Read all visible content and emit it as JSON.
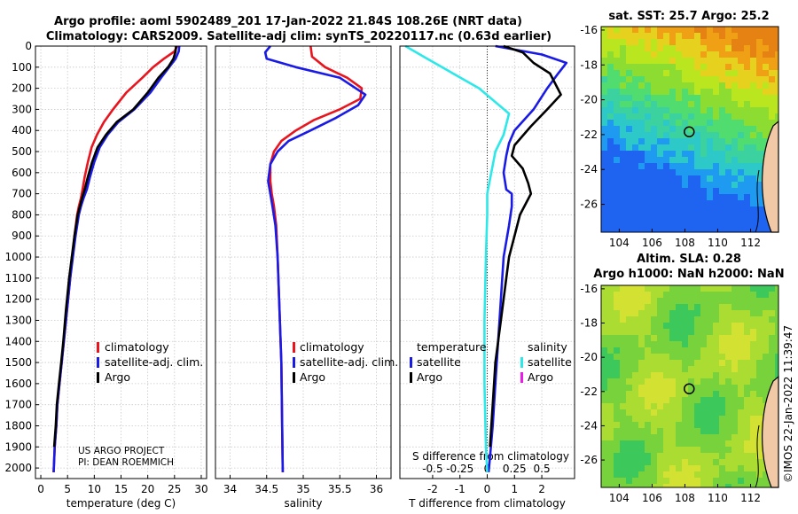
{
  "header": {
    "line1": "Argo profile: aoml 5902489_201 17-Jan-2022 21.84S 108.26E (NRT data)",
    "line2": "Climatology: CARS2009. Satellite-adj clim: synTS_20220117.nc (0.63d earlier)"
  },
  "colors": {
    "climatology": "#e8141e",
    "satellite": "#1a1ae6",
    "argo": "#000000",
    "satellite_sal": "#2de8e8",
    "argo_sal": "#e81ee8"
  },
  "depth_axis": {
    "ylim": [
      0,
      2050
    ],
    "ticks": [
      0,
      100,
      200,
      300,
      400,
      500,
      600,
      700,
      800,
      900,
      1000,
      1100,
      1200,
      1300,
      1400,
      1500,
      1600,
      1700,
      1800,
      1900,
      2000
    ]
  },
  "legend1": {
    "climatology": "climatology",
    "satellite": "satellite-adj. clim.",
    "argo": "Argo"
  },
  "legend3": {
    "temp_head": "temperature",
    "sal_head": "salinity",
    "satellite": "satellite",
    "argo": "Argo"
  },
  "credit": {
    "line1": "US ARGO PROJECT",
    "line2": "PI: DEAN ROEMMICH"
  },
  "map1": {
    "title": "sat. SST: 25.7 Argo: 25.2",
    "xticks": [
      104,
      106,
      108,
      110,
      112
    ],
    "yticks": [
      -16,
      -18,
      -20,
      -22,
      -24,
      -26
    ]
  },
  "map2": {
    "title1": "Altim. SLA: 0.28",
    "title2": "Argo h1000: NaN h2000: NaN",
    "xticks": [
      104,
      106,
      108,
      110,
      112
    ],
    "yticks": [
      -16,
      -18,
      -20,
      -22,
      -24,
      -26
    ]
  },
  "map_marker": {
    "lon": 108.26,
    "lat": -21.84
  },
  "stamp": "©IMOS 22-Jan-2022 11:39:47",
  "chart_data": [
    {
      "type": "line",
      "id": "temperature",
      "xlabel": "temperature (deg C)",
      "ylabel": "",
      "xlim": [
        -1,
        31
      ],
      "ylim": [
        0,
        2050
      ],
      "xticks": [
        0,
        5,
        10,
        15,
        20,
        25,
        30
      ],
      "series": [
        {
          "name": "climatology",
          "color": "#e8141e",
          "x": [
            25.5,
            25.0,
            23.0,
            21.0,
            19.0,
            16.0,
            13.5,
            11.8,
            10.5,
            9.5,
            8.8,
            8.2,
            7.8,
            7.5,
            7.1,
            6.8,
            6.3,
            5.9,
            5.5,
            4.9,
            4.3,
            3.9,
            3.5,
            3.1,
            2.9,
            2.6,
            2.4
          ],
          "y": [
            0,
            25,
            60,
            100,
            150,
            220,
            300,
            360,
            420,
            480,
            550,
            620,
            680,
            720,
            760,
            800,
            900,
            1000,
            1100,
            1250,
            1400,
            1500,
            1600,
            1700,
            1800,
            1900,
            2020
          ]
        },
        {
          "name": "satellite-adj. clim.",
          "color": "#1a1ae6",
          "x": [
            25.9,
            25.8,
            25.2,
            24.0,
            22.5,
            20.5,
            17.5,
            14.5,
            12.5,
            11.0,
            10.0,
            9.2,
            8.6,
            8.0,
            7.5,
            7.1,
            6.5,
            6.0,
            5.5,
            4.9,
            4.3,
            3.9,
            3.5,
            3.1,
            2.9,
            2.6,
            2.4
          ],
          "y": [
            0,
            25,
            60,
            100,
            150,
            220,
            300,
            360,
            420,
            480,
            550,
            620,
            680,
            720,
            760,
            800,
            900,
            1000,
            1100,
            1250,
            1400,
            1500,
            1600,
            1700,
            1800,
            1900,
            2020
          ]
        },
        {
          "name": "Argo",
          "color": "#000000",
          "x": [
            25.3,
            25.2,
            24.8,
            23.8,
            22.0,
            20.0,
            17.3,
            14.2,
            12.2,
            10.6,
            9.6,
            8.8,
            8.2,
            7.7,
            7.3,
            6.9,
            6.3,
            5.8,
            5.3,
            4.7,
            4.2,
            3.8,
            3.4,
            3.0,
            2.8,
            2.5
          ],
          "y": [
            0,
            25,
            60,
            100,
            150,
            220,
            300,
            360,
            420,
            480,
            550,
            620,
            680,
            720,
            760,
            800,
            900,
            1000,
            1100,
            1250,
            1400,
            1500,
            1600,
            1700,
            1800,
            1900
          ]
        }
      ]
    },
    {
      "type": "line",
      "id": "salinity",
      "xlabel": "salinity",
      "ylabel": "",
      "xlim": [
        33.8,
        36.2
      ],
      "ylim": [
        0,
        2050
      ],
      "xticks": [
        34,
        34.5,
        35,
        35.5,
        36
      ],
      "series": [
        {
          "name": "climatology",
          "color": "#e8141e",
          "x": [
            35.1,
            35.12,
            35.3,
            35.6,
            35.8,
            35.78,
            35.5,
            35.15,
            34.9,
            34.7,
            34.6,
            34.55,
            34.55,
            34.57,
            34.6,
            34.63,
            34.65,
            34.67,
            34.7,
            34.72
          ],
          "y": [
            0,
            50,
            100,
            150,
            200,
            250,
            300,
            350,
            400,
            450,
            500,
            560,
            640,
            700,
            760,
            850,
            1000,
            1200,
            1500,
            2020
          ]
        },
        {
          "name": "satellite-adj. clim.",
          "color": "#1a1ae6",
          "x": [
            34.55,
            34.48,
            34.5,
            34.9,
            35.5,
            35.85,
            35.75,
            35.45,
            35.1,
            34.8,
            34.65,
            34.55,
            34.52,
            34.55,
            34.58,
            34.62,
            34.65,
            34.67,
            34.7,
            34.72
          ],
          "y": [
            0,
            30,
            60,
            100,
            150,
            230,
            280,
            340,
            400,
            450,
            500,
            560,
            640,
            700,
            760,
            850,
            1000,
            1200,
            1500,
            2020
          ]
        }
      ]
    },
    {
      "type": "line",
      "id": "difference",
      "xlabel": "T difference from climatology",
      "xlabel2": "S difference from climatology",
      "xlim": [
        -3.2,
        3.2
      ],
      "ylim": [
        0,
        2050
      ],
      "xticks": [
        -2,
        -1,
        0,
        1,
        2
      ],
      "s_ticks": [
        -0.5,
        -0.25,
        0,
        0.25,
        0.5
      ],
      "series": [
        {
          "name": "temperature satellite",
          "color": "#1a1ae6",
          "x": [
            0.3,
            2.0,
            2.9,
            2.6,
            2.2,
            1.7,
            1.0,
            0.8,
            0.7,
            0.6,
            0.7,
            0.9,
            0.9,
            0.8,
            0.6,
            0.5,
            0.4,
            0.3,
            0.2,
            0.1,
            0.05
          ],
          "y": [
            0,
            40,
            80,
            130,
            200,
            300,
            400,
            460,
            520,
            600,
            680,
            700,
            760,
            850,
            1000,
            1200,
            1400,
            1600,
            1800,
            1950,
            2020
          ]
        },
        {
          "name": "temperature Argo",
          "color": "#000000",
          "x": [
            0.6,
            1.3,
            1.7,
            2.3,
            2.7,
            2.2,
            1.6,
            1.0,
            0.9,
            1.3,
            1.5,
            1.6,
            1.2,
            1.0,
            0.8,
            0.7,
            0.5,
            0.3,
            0.2,
            0.1
          ],
          "y": [
            0,
            30,
            80,
            130,
            230,
            300,
            380,
            470,
            520,
            580,
            650,
            700,
            800,
            900,
            1000,
            1100,
            1300,
            1500,
            1700,
            1900
          ]
        },
        {
          "name": "salinity satellite",
          "color": "#2de8e8",
          "x": [
            -3.0,
            -2.2,
            -0.3,
            0.8,
            0.6,
            0.3,
            0.15,
            0.0,
            0.0,
            -0.05,
            -0.1,
            -0.1,
            -0.05,
            0.0
          ],
          "y": [
            0,
            60,
            200,
            320,
            420,
            500,
            600,
            700,
            800,
            1000,
            1300,
            1600,
            1900,
            2020
          ]
        },
        {
          "name": "salinity Argo",
          "color": "#e81ee8",
          "x": [],
          "y": []
        }
      ]
    }
  ]
}
